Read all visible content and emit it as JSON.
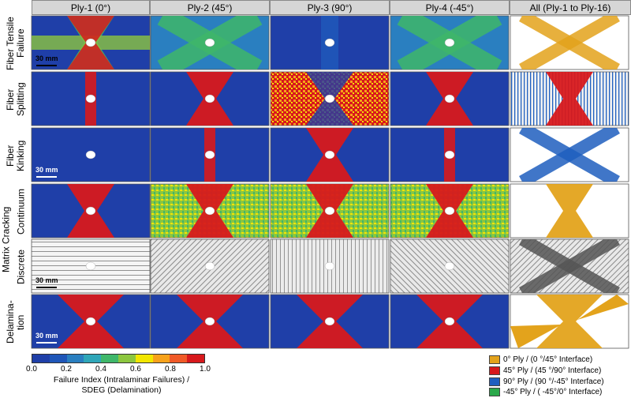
{
  "columns": [
    "Ply-1 (0°)",
    "Ply-2 (45°)",
    "Ply-3 (90°)",
    "Ply-4 (-45°)",
    "All (Ply-1 to Ply-16)"
  ],
  "row_labels": {
    "fiber_tensile": "Fiber Tensile Failure",
    "fiber_splitting": "Fiber Splitting",
    "fiber_kinking": "Fiber Kinking",
    "matrix_cracking": "Matrix Cracking",
    "continuum": "Continuum",
    "discrete": "Discrete",
    "delamination": "Delamina- tion"
  },
  "scale_bar": "30 mm",
  "colorbar": {
    "ticks": [
      "0.0",
      "0.2",
      "0.4",
      "0.6",
      "0.8",
      "1.0"
    ],
    "caption_line1": "Failure Index (Intralaminar Failures) /",
    "caption_line2": "SDEG (Delamination)",
    "colors": [
      "#1f3fa8",
      "#1f56b8",
      "#2a7fc0",
      "#2fa6b8",
      "#3fb76a",
      "#8cc63f",
      "#f2e600",
      "#f7a21b",
      "#f05a28",
      "#d7191c"
    ]
  },
  "legend": [
    {
      "label": "0° Ply / (0  °/45° Interface)",
      "color": "#e3a31c"
    },
    {
      "label": "45° Ply / (45  °/90° Interface)",
      "color": "#d7191c"
    },
    {
      "label": "90° Ply / (90  °/-45° Interface)",
      "color": "#1f5fbf"
    },
    {
      "label": "-45° Ply / (  -45°/0° Interface)",
      "color": "#2aa84a"
    }
  ]
}
